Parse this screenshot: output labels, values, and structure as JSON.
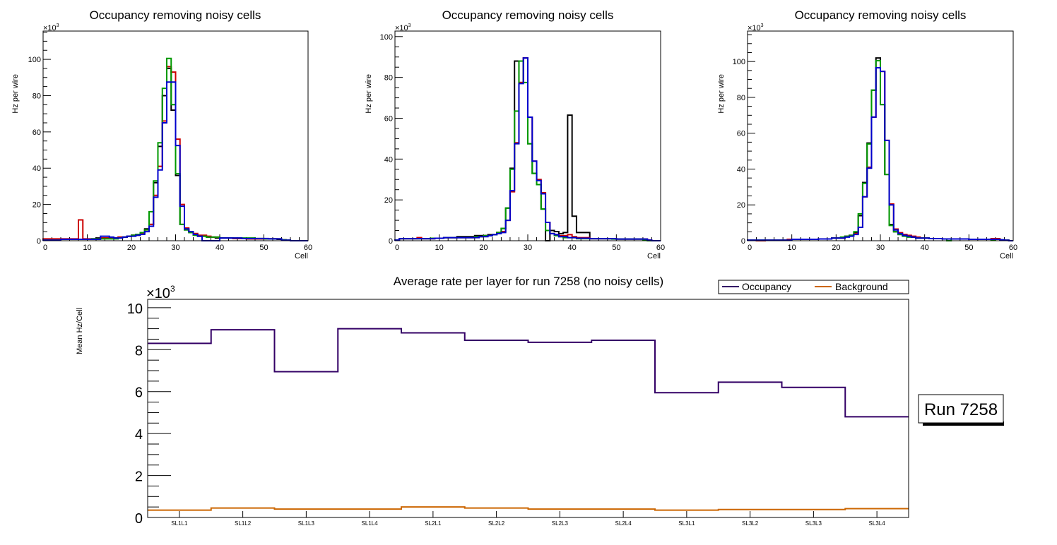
{
  "chart_data": [
    {
      "type": "histogram-step",
      "title": "Occupancy removing noisy cells",
      "xlabel": "Cell",
      "ylabel": "Hz per wire",
      "y_multiplier_label": "×10",
      "y_multiplier_exp": "3",
      "xlim": [
        0,
        60
      ],
      "ylim": [
        0,
        115.6
      ],
      "xticks": [
        0,
        10,
        20,
        30,
        40,
        50,
        60
      ],
      "yticks": [
        0,
        20,
        40,
        60,
        80,
        100
      ],
      "series": [
        {
          "name": "black",
          "color": "#000000",
          "values": [
            0.5,
            0.5,
            0.5,
            0.5,
            0.8,
            0.8,
            0.8,
            0.8,
            0.8,
            0.8,
            0.8,
            1.0,
            1.5,
            1.5,
            1.5,
            1.5,
            1.5,
            2.0,
            2.0,
            2.5,
            3.0,
            3.5,
            4.5,
            6.5,
            9,
            32,
            52,
            80,
            95,
            72,
            36,
            9,
            6,
            5,
            3.5,
            2.5,
            2.5,
            2.0,
            2.0,
            1.5,
            1.5,
            1.5,
            1.5,
            1.2,
            1.2,
            1.2,
            1.0,
            1.0,
            1.0,
            1.0,
            1.0,
            1.0,
            1.0,
            0.8,
            0.5,
            0.3,
            0,
            0,
            0,
            0
          ]
        },
        {
          "name": "red",
          "color": "#cc0000",
          "values": [
            1.0,
            1.0,
            1.0,
            1.0,
            1.0,
            1.0,
            1.0,
            1.0,
            11.5,
            1.0,
            1.0,
            1.0,
            1.0,
            1.5,
            1.5,
            1.5,
            1.5,
            2.0,
            2.0,
            2.5,
            3.0,
            3.0,
            4.0,
            6.0,
            9,
            25,
            41,
            66,
            96,
            93,
            56,
            20,
            7,
            5,
            4,
            3,
            3,
            2.5,
            2,
            2,
            1.5,
            1.5,
            1.5,
            1.2,
            1.2,
            1.2,
            1.0,
            1.0,
            1.0,
            1.0,
            1.0,
            1.0,
            1.0,
            1.0,
            0.5,
            0.3,
            0,
            0,
            0,
            0
          ]
        },
        {
          "name": "green",
          "color": "#009900",
          "values": [
            0.3,
            0.3,
            0.3,
            0.3,
            0.8,
            0.8,
            0.8,
            0.8,
            0.8,
            0.8,
            0.8,
            1.0,
            1.0,
            1.0,
            1.0,
            1.0,
            1.0,
            1.5,
            2.0,
            2.5,
            3.0,
            3.5,
            4.5,
            6.0,
            16,
            33,
            54,
            84,
            100.5,
            75,
            37,
            9,
            6,
            4.5,
            3,
            2.5,
            2.5,
            2,
            2,
            2,
            1.5,
            1.5,
            1.5,
            1.5,
            1.5,
            1.5,
            1.5,
            1.5,
            1.2,
            1.2,
            1.0,
            1.0,
            1.0,
            1.0,
            0.5,
            0.3,
            0,
            0,
            0,
            0
          ]
        },
        {
          "name": "blue",
          "color": "#0000cc",
          "values": [
            0.3,
            0.3,
            0.3,
            0.3,
            0.8,
            0.8,
            0.8,
            0.8,
            0.8,
            0.8,
            0.8,
            0.8,
            0.8,
            2.5,
            2.5,
            2.0,
            1.5,
            1.5,
            2.0,
            2.5,
            2.5,
            3.0,
            3.5,
            5.0,
            8,
            24,
            39,
            65,
            87.5,
            87.5,
            52.5,
            19,
            6.5,
            5,
            3.5,
            2.5,
            0,
            0,
            0,
            0,
            1.5,
            1.5,
            1.5,
            1.5,
            1.5,
            1.2,
            1.2,
            1.2,
            1.2,
            1.2,
            1.2,
            1.0,
            1.0,
            1.0,
            0.3,
            0.3,
            0,
            0,
            0,
            0
          ]
        }
      ]
    },
    {
      "type": "histogram-step",
      "title": "Occupancy removing noisy cells",
      "xlabel": "Cell",
      "ylabel": "Hz per wire",
      "y_multiplier_label": "×10",
      "y_multiplier_exp": "3",
      "xlim": [
        0,
        60
      ],
      "ylim": [
        0,
        102.7
      ],
      "xticks": [
        0,
        10,
        20,
        30,
        40,
        50,
        60
      ],
      "yticks": [
        0,
        20,
        40,
        60,
        80,
        100
      ],
      "series": [
        {
          "name": "black",
          "color": "#000000",
          "values": [
            0.3,
            1.0,
            1.0,
            1.0,
            1.0,
            1.0,
            1.0,
            1.0,
            1.0,
            1.2,
            1.2,
            1.5,
            1.5,
            1.5,
            2.0,
            2.0,
            2.0,
            2.0,
            2.5,
            2.5,
            2.5,
            3.0,
            3.0,
            4.0,
            6.0,
            16,
            35.5,
            88,
            77.5,
            89.5,
            47.5,
            33,
            27.5,
            15.5,
            0,
            5,
            4.5,
            3.5,
            4,
            61.5,
            12,
            4,
            4,
            4,
            1,
            1,
            1,
            1,
            1,
            1,
            0.8,
            0.8,
            0.8,
            0.8,
            0.8,
            0.8,
            0.8,
            0.3,
            0,
            0
          ]
        },
        {
          "name": "red",
          "color": "#cc0000",
          "values": [
            0.3,
            1.0,
            1.0,
            1.0,
            1.0,
            1.5,
            1.0,
            1.0,
            1.0,
            1.2,
            1.2,
            1.5,
            1.5,
            1.5,
            1.5,
            1.5,
            1.5,
            1.5,
            2.0,
            2.0,
            2.5,
            2.5,
            3.0,
            4.0,
            4.5,
            10,
            24,
            48,
            77.5,
            89.5,
            60.5,
            39,
            30,
            23.5,
            9,
            3.5,
            3.0,
            2.5,
            2.5,
            3,
            2,
            1.5,
            1.5,
            1.5,
            1,
            1,
            1,
            1,
            1,
            1,
            0.8,
            0.8,
            0.8,
            0.8,
            0.8,
            0.8,
            0.8,
            0.3,
            0,
            0
          ]
        },
        {
          "name": "green",
          "color": "#009900",
          "values": [
            0.3,
            1.0,
            1.0,
            1.0,
            1.0,
            1.0,
            1.0,
            1.0,
            1.2,
            1.2,
            1.2,
            1.5,
            1.5,
            1.5,
            1.5,
            1.5,
            1.5,
            1.5,
            2.0,
            2.0,
            2.5,
            2.5,
            3.0,
            4.0,
            6.0,
            16,
            35,
            63.5,
            88,
            77.5,
            47.5,
            33,
            27.5,
            15.5,
            5,
            3.5,
            2.5,
            2.0,
            1.5,
            1.5,
            1.5,
            1,
            1,
            1,
            1,
            1,
            1,
            1,
            1,
            0.8,
            0.8,
            0.8,
            0.8,
            0.8,
            0.8,
            0.8,
            0.3,
            0,
            0,
            0
          ]
        },
        {
          "name": "blue",
          "color": "#0000cc",
          "values": [
            0.3,
            1.0,
            1.0,
            1.0,
            1.0,
            1.0,
            1.0,
            1.0,
            1.0,
            1.2,
            1.2,
            1.5,
            1.5,
            1.5,
            1.5,
            1.5,
            1.5,
            1.5,
            1.5,
            2.0,
            2.0,
            2.5,
            3.0,
            3.5,
            4.0,
            10,
            24.5,
            47.5,
            77,
            89.5,
            60.5,
            39,
            29.5,
            23,
            9,
            3.5,
            3.0,
            2.0,
            2.0,
            1.5,
            1.5,
            1.2,
            1.2,
            1.2,
            1.0,
            1.0,
            1.0,
            1.0,
            1.0,
            1.0,
            0.8,
            0.8,
            0.8,
            0.8,
            0.8,
            0.8,
            0.8,
            0.3,
            0,
            0
          ]
        }
      ]
    },
    {
      "type": "histogram-step",
      "title": "Occupancy removing noisy cells",
      "xlabel": "Cell",
      "ylabel": "Hz per wire",
      "y_multiplier_label": "×10",
      "y_multiplier_exp": "3",
      "xlim": [
        0,
        60
      ],
      "ylim": [
        0,
        117
      ],
      "xticks": [
        0,
        10,
        20,
        30,
        40,
        50,
        60
      ],
      "yticks": [
        0,
        20,
        40,
        60,
        80,
        100
      ],
      "series": [
        {
          "name": "black",
          "color": "#000000",
          "values": [
            0.3,
            0.3,
            0.3,
            0.3,
            0.3,
            0.3,
            0.3,
            0.3,
            0.3,
            0.8,
            0.8,
            0.8,
            0.8,
            0.8,
            0.8,
            0.8,
            1.0,
            1.0,
            1.0,
            1.5,
            1.5,
            1.5,
            2.5,
            3.0,
            4.5,
            14,
            32.5,
            54.5,
            84,
            102,
            76,
            37,
            9,
            5,
            3.5,
            3,
            2.5,
            2,
            1.5,
            1.5,
            1.5,
            1.2,
            1.2,
            1.2,
            1.0,
            1.0,
            1.0,
            1.0,
            1.0,
            1.0,
            0.8,
            0.8,
            0.8,
            0.8,
            0.8,
            0.8,
            0.8,
            0.5,
            0.3,
            0
          ]
        },
        {
          "name": "red",
          "color": "#cc0000",
          "values": [
            0.3,
            0.3,
            0.0,
            0.0,
            0.3,
            0.3,
            0.3,
            0.3,
            0.3,
            0.8,
            0.8,
            0.8,
            0.8,
            0.8,
            0.8,
            0.8,
            1.0,
            1.0,
            1.0,
            1.5,
            1.5,
            1.5,
            2.5,
            3.0,
            4.0,
            7.5,
            24.5,
            41,
            69,
            96.5,
            94.5,
            56,
            20.5,
            6.5,
            4.5,
            3.5,
            3,
            2.5,
            2,
            1.5,
            1.5,
            1.2,
            1.2,
            1.2,
            1.0,
            1.0,
            1.0,
            1.0,
            1.0,
            1.0,
            0.8,
            0.8,
            0.8,
            0.8,
            0.8,
            1.2,
            1.2,
            0.5,
            0.3,
            0
          ]
        },
        {
          "name": "green",
          "color": "#009900",
          "values": [
            0.3,
            0.3,
            0.3,
            0.3,
            0.3,
            0.3,
            0.3,
            0.3,
            0.3,
            0.3,
            0.8,
            0.8,
            0.8,
            0.8,
            0.8,
            0.8,
            1.0,
            1.0,
            1.0,
            1.5,
            1.5,
            2.0,
            2.5,
            3.0,
            5,
            15,
            32,
            54,
            84,
            100.5,
            76,
            37,
            8.5,
            5,
            3.5,
            2.5,
            2,
            2,
            1.5,
            1.5,
            1.5,
            1.2,
            1.2,
            1.2,
            1.0,
            0.0,
            1.0,
            1.0,
            1.0,
            1.0,
            0.8,
            0.8,
            0.8,
            0.8,
            0.8,
            0.3,
            0.8,
            0.5,
            0.3,
            0
          ]
        },
        {
          "name": "blue",
          "color": "#0000cc",
          "values": [
            0.3,
            0.3,
            0.3,
            0.3,
            0.3,
            0.3,
            0.3,
            0.3,
            0.3,
            0.3,
            0.8,
            0.8,
            0.8,
            0.8,
            0.8,
            0.8,
            1.0,
            1.0,
            1.0,
            1.5,
            1.5,
            1.5,
            2.0,
            2.5,
            3.5,
            7.5,
            24.5,
            40.5,
            69,
            96.5,
            94.5,
            56,
            20,
            6,
            4,
            3,
            2.5,
            2,
            1.5,
            1.5,
            1.5,
            1.2,
            1.2,
            1.2,
            1.0,
            1.0,
            1.0,
            1.0,
            1.0,
            1.0,
            0.8,
            0.8,
            0.8,
            0.8,
            0.8,
            0.8,
            0.8,
            0.5,
            0.3,
            0
          ]
        }
      ]
    },
    {
      "type": "histogram-step",
      "title": "Average rate per layer for run 7258 (no noisy cells)",
      "xlabel": "",
      "ylabel": "Mean Hz/Cell",
      "y_multiplier_label": "×10",
      "y_multiplier_exp": "3",
      "categories": [
        "SL1L1",
        "SL1L2",
        "SL1L3",
        "SL1L4",
        "SL2L1",
        "SL2L2",
        "SL2L3",
        "SL2L4",
        "SL3L1",
        "SL3L2",
        "SL3L3",
        "SL3L4"
      ],
      "ylim": [
        0,
        10.4
      ],
      "yticks": [
        0,
        2,
        4,
        6,
        8,
        10
      ],
      "legend": {
        "placement": "top-right",
        "entries": [
          "Occupancy",
          "Background"
        ]
      },
      "series": [
        {
          "name": "Occupancy",
          "color": "#330066",
          "values": [
            8.3,
            8.95,
            6.95,
            9.0,
            8.8,
            8.45,
            8.35,
            8.45,
            5.95,
            6.45,
            6.2,
            4.8
          ]
        },
        {
          "name": "Background",
          "color": "#cc6600",
          "values": [
            0.35,
            0.45,
            0.4,
            0.4,
            0.5,
            0.45,
            0.4,
            0.4,
            0.35,
            0.38,
            0.38,
            0.42
          ]
        }
      ]
    }
  ],
  "annotation": {
    "label": "Run 7258"
  }
}
